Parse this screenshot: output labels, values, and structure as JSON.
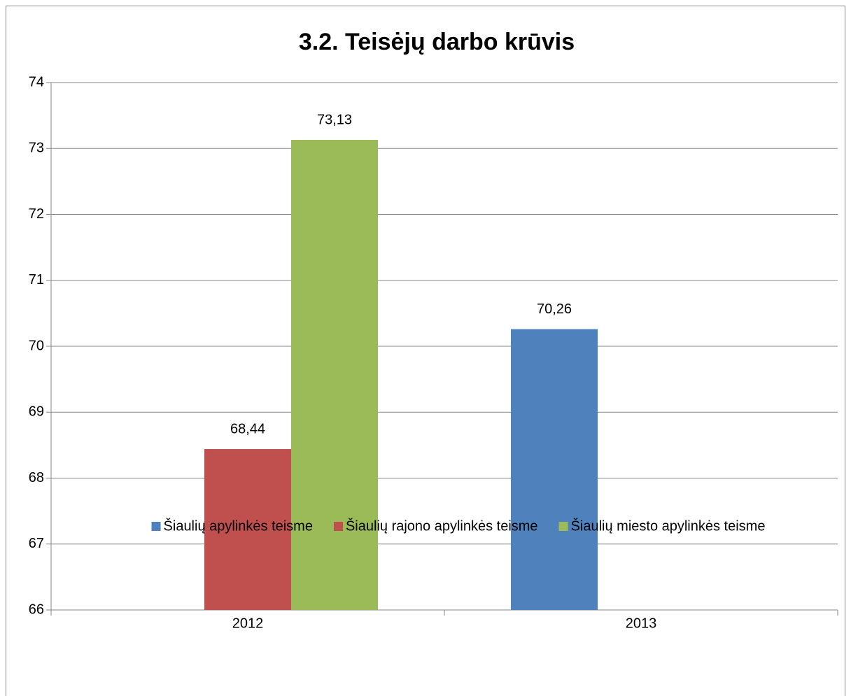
{
  "chart_data": {
    "type": "bar",
    "title": "3.2. Teisėjų  darbo krūvis",
    "categories": [
      "2012",
      "2013"
    ],
    "series": [
      {
        "name": "Šiaulių apylinkės teisme",
        "color": "#4f81bd",
        "values": [
          null,
          70.26
        ],
        "value_labels": [
          null,
          "70,26"
        ]
      },
      {
        "name": "Šiaulių rajono apylinkės teisme",
        "color": "#c0504d",
        "values": [
          68.44,
          null
        ],
        "value_labels": [
          "68,44",
          null
        ]
      },
      {
        "name": "Šiaulių miesto apylinkės teisme",
        "color": "#9bbb59",
        "values": [
          73.13,
          null
        ],
        "value_labels": [
          "73,13",
          null
        ]
      }
    ],
    "ylim": [
      66,
      74
    ],
    "yticks": [
      66,
      67,
      68,
      69,
      70,
      71,
      72,
      73,
      74
    ],
    "grid": true,
    "legend": "bottom"
  }
}
